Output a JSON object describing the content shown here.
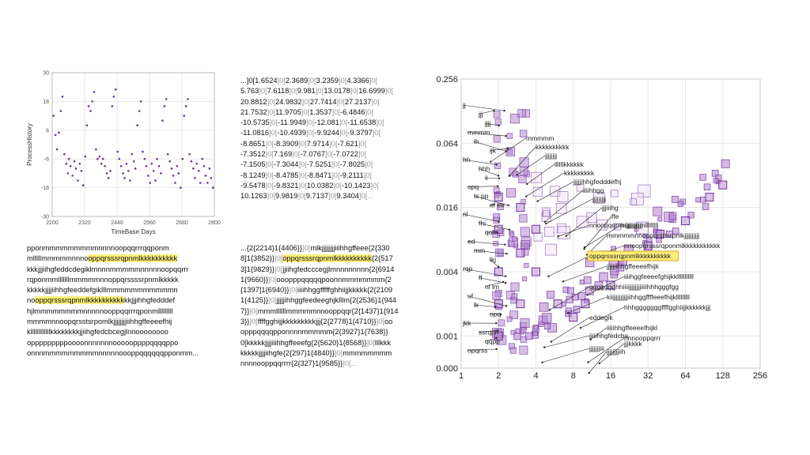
{
  "colors": {
    "accent": "#7030a0",
    "marker_fill": "#b58ad0",
    "highlight": "#fdf07a",
    "highlight_border": "#e0a020",
    "grid": "#e6e6e6"
  },
  "chart_data": [
    {
      "type": "scatter",
      "title": "",
      "xlabel": "TimeBase Days",
      "ylabel": "ProcessHistory",
      "xlim": [
        2200,
        2800
      ],
      "ylim": [
        -30,
        30
      ],
      "x_ticks": [
        "2200",
        "2320",
        "2440",
        "2560",
        "2680",
        "2800"
      ],
      "y_ticks": [
        "30",
        "18",
        "6",
        "-6",
        "-18",
        "-30"
      ],
      "grid": true,
      "series": [
        {
          "x": [
            2205,
            2212,
            2218,
            2225,
            2232,
            2238,
            2245,
            2252,
            2258,
            2262,
            2268,
            2275,
            2282,
            2288,
            2295,
            2302,
            2308,
            2315,
            2322,
            2328,
            2335,
            2342,
            2348,
            2355,
            2362,
            2368,
            2375,
            2382,
            2388,
            2395,
            2402,
            2408,
            2415,
            2422,
            2428,
            2435,
            2442,
            2448,
            2455,
            2462,
            2468,
            2475,
            2482,
            2488,
            2495,
            2502,
            2508,
            2515,
            2522,
            2528,
            2535,
            2542,
            2548,
            2555,
            2562,
            2568,
            2575,
            2582,
            2588,
            2595,
            2602,
            2608,
            2615,
            2622,
            2628,
            2635,
            2642,
            2648,
            2655,
            2662,
            2668,
            2675,
            2682,
            2688,
            2695,
            2702,
            2708,
            2715,
            2722,
            2728,
            2735,
            2742,
            2748,
            2755,
            2762,
            2768,
            2775,
            2782,
            2788,
            2795
          ],
          "y": [
            12.0,
            4.0,
            -2.0,
            5.0,
            14.0,
            20.0,
            -4.0,
            -8.0,
            -12.0,
            -6.0,
            -9.0,
            -13.0,
            -7.0,
            -10.0,
            -15.0,
            -8.0,
            -11.0,
            -17.0,
            -5.0,
            8.0,
            16.0,
            14.0,
            18.0,
            22.0,
            -2.0,
            -6.0,
            -5.0,
            -8.0,
            -6.0,
            -9.0,
            -12.0,
            -14.0,
            -11.0,
            16.0,
            20.0,
            23.0,
            -3.0,
            -6.0,
            -9.0,
            -12.0,
            -14.0,
            -8.0,
            -11.0,
            -15.0,
            -4.0,
            -7.0,
            -10.0,
            8.0,
            14.0,
            18.0,
            -3.0,
            -6.0,
            -9.0,
            -13.0,
            -16.0,
            -8.0,
            -11.0,
            -15.0,
            -6.0,
            -9.0,
            -12.0,
            10.0,
            16.0,
            19.0,
            -4.0,
            -7.0,
            -10.0,
            -13.0,
            -16.0,
            -9.0,
            -12.0,
            -18.0,
            -6.0,
            12.0,
            16.0,
            19.0,
            -4.0,
            -7.0,
            -10.0,
            -14.0,
            -8.0,
            -11.0,
            -16.0,
            -6.0,
            -9.0,
            -13.0,
            -16.0,
            -10.0,
            -14.0,
            -18.0
          ]
        }
      ]
    },
    {
      "type": "scatter",
      "title": "",
      "xlabel": "",
      "ylabel": "",
      "x_scale": "log2",
      "y_scale": "log",
      "x_ticks": [
        "1",
        "2",
        "4",
        "8",
        "16",
        "32",
        "64",
        "128",
        "256"
      ],
      "y_ticks": [
        "0.256",
        "0.064",
        "0.016",
        "0.004",
        "0.001",
        "0.000"
      ],
      "grid": true,
      "points": [
        {
          "x": 2,
          "y": 0.02
        },
        {
          "x": 2,
          "y": 0.01
        },
        {
          "x": 2,
          "y": 0.004
        },
        {
          "x": 2,
          "y": 0.002
        },
        {
          "x": 2,
          "y": 0.001
        },
        {
          "x": 3,
          "y": 0.016
        },
        {
          "x": 3,
          "y": 0.006
        },
        {
          "x": 3,
          "y": 0.002
        },
        {
          "x": 4,
          "y": 0.01
        },
        {
          "x": 4,
          "y": 0.004
        },
        {
          "x": 6,
          "y": 0.002
        },
        {
          "x": 8,
          "y": 0.0015
        },
        {
          "x": 10,
          "y": 0.002
        },
        {
          "x": 16,
          "y": 0.003
        },
        {
          "x": 20,
          "y": 0.005
        },
        {
          "x": 32,
          "y": 0.007
        },
        {
          "x": 40,
          "y": 0.009
        },
        {
          "x": 64,
          "y": 0.012
        },
        {
          "x": 100,
          "y": 0.02
        },
        {
          "x": 128,
          "y": 0.026
        }
      ],
      "annotations": [
        "jj",
        "jjj",
        "jjjj",
        "mmmm",
        "ih",
        "ijk",
        "hh",
        "hhh",
        "ii",
        "opq",
        "ts pp",
        "ef ee",
        "nl",
        "fhi",
        "qom",
        "ed",
        "mm",
        "lkj",
        "rqp",
        "ff",
        "nl lm",
        "uf",
        "lk",
        "opq",
        "jkk",
        "ssrqpn",
        "qqpp",
        "opqrss",
        "mmmmm",
        "kkkkkkkkkk",
        "jjjjjjjj",
        "llllllkkkkkk",
        "kkkkkkkkk",
        "jjjjjihhgfedddefhj",
        "iiiihhgg",
        "jjjjjjjjj",
        "jjjiiihg",
        "ffe",
        "hijjjjjjjjjjj",
        "nnoopqqrrrrqponmlllllllll",
        "mmmmmnnoopqrsttsrpnlkjjjjjjjjjj",
        "nnoopqrsssrqponmlkkkkkkkkkkk",
        "oppqrsssrqpnmlkkkkkkkkkk",
        "jjjjjjihhgffeeeefhijk",
        "iiiihggfeeeefghijkklllllllllll",
        "ggggggghhiiiijjjjjjjjiiiihhhgggfgg",
        "kiijjjjjjjjjjiihhggffffeeefhijklllllllll",
        "hhhgggggggffffgghiijjkkkkkkjjj",
        "eddegik",
        "iiiiihhgffeeeefhijkl",
        "nnnooppqrrr",
        "jjjjjjjiii",
        "jjjjjjjjiih",
        "jjjkkkk",
        "jjiiihhgfedcba"
      ],
      "highlighted_label": "oppqrsssrqpnmlkkkkkkkkkk"
    }
  ],
  "text_panels": {
    "sequence_left": {
      "lines": [
        [
          "pponmmmmmmmmmnnnnoopqqrrrqqponm"
        ],
        [
          "mlllllmmmmmnnno",
          "oppqrsssrqpnmlkkkkkkkkkk"
        ],
        [
          "kkkjjjiihgfeddcdegiklmnnnmmmmmnnnnnoopqqrrr"
        ],
        [
          "rqponmmlllllllmmmmmnnoppqrssssrpnmlkkkkk"
        ],
        [
          "kkkkkjjjjiihhgfeeddefgiklllmmmmmmmmmmmn"
        ],
        [
          "no",
          "oppqrsssrqpnmlkkkkkkkkkk",
          "kkjjjihhgfedddef"
        ],
        [
          "hjlmmmmmmmmnnnnnooppqqrrrqponmlllllllll"
        ],
        [
          "mmmmnnoopqrsstsrpomlkjjjjjjjjiihhgffeeeefhij"
        ],
        [
          "kllllllllllllkkkkkkkkjjiihgfedcbcegjlnnoooooooo"
        ],
        [
          "opppppppppoooonnnnnnnoooooppppqqqqppo"
        ],
        [
          "onnnmmmmmmmmmnnnnnoooppqqqqqqpponmm..."
        ]
      ]
    },
    "values_middle": {
      "lines": [
        [
          "...]0[",
          "1.6524",
          "]0[",
          "2.3689",
          "]0[",
          "3.2359",
          "]0[",
          "4.3366",
          "]0["
        ],
        [
          "5.763",
          "]0[",
          "7.6118",
          "]0[",
          "9.981",
          "]0[",
          "13.0178",
          "]0[",
          "16.6999",
          "]0["
        ],
        [
          "20.8812",
          "]0[",
          "24.9832",
          "]0[",
          "27.7414",
          "]0[",
          "27.2137",
          "]0["
        ],
        [
          "21.7532",
          "]0[",
          "11.9705",
          "]0[",
          "1.3537",
          "]0[",
          "-6.4846",
          "]0["
        ],
        [
          "-10.5735",
          "]0[",
          "-11.9949",
          "]0[",
          "-12.081",
          "]0[",
          "-11.6538",
          "]0["
        ],
        [
          "-11.0816",
          "]0[",
          "-10.4939",
          "]0[",
          "-9.9244",
          "]0[",
          "-9.3797",
          "]0["
        ],
        [
          "-8.8651",
          "]0[",
          "-8.3909",
          "]0[",
          "7.9714",
          "]0[",
          "-7.621",
          "]0["
        ],
        [
          "-7.3512",
          "]0[",
          "7.169",
          "]0[",
          "-7.0767",
          "]0[",
          "-7.0722",
          "]0["
        ],
        [
          "-7.1505",
          "]0[",
          "-7.3044",
          "]0[",
          "-7.5251",
          "]0[",
          "-7.8025",
          "]0["
        ],
        [
          "-8.1249",
          "]0[",
          "-8.4785",
          "]0[",
          "-8.8471",
          "]0[",
          "-9.2111",
          "]0["
        ],
        [
          "-9.5478",
          "]0[",
          "-9.8321",
          "]0[",
          "10.0382",
          "]0[",
          "-10.1423",
          "]0["
        ],
        [
          "10.1263",
          "]0[",
          "9.9819",
          "]0[",
          "9.7137",
          "]0[",
          "9.3404",
          "]0[..."
        ]
      ]
    },
    "tokens_middle": {
      "lines": [
        [
          "...{2{2214}1{4406}}",
          "]0[",
          "mlkjjjjjjjjiiihhgffeee{2{330"
        ],
        [
          "8]1{3852}}",
          "]0[",
          "oppqrsssrqpnmlkkkkkkkkkk",
          "{2{517"
        ],
        [
          "3]1{9829}}",
          "]0[",
          "jjiihgfedcccegjlmnnnnnnnn{2{6914"
        ],
        [
          "1{9660}}",
          "]0[",
          "ooopppqqqqqpoonnmmmmmmm{2"
        ],
        [
          "{1397]1{6940}}",
          "]0[",
          "iiiihhggfffffghhiijjkkkkk{2{2109"
        ],
        [
          "1{4125}}",
          "]0[",
          "jjjjjihhggfeedeeghjklllm{2{2536}1{944"
        ],
        [
          "7}}",
          "]0[",
          "mmmllllllmmmmmnnooppqqr{2{1437}1{914"
        ],
        [
          "3}}",
          "]0[",
          "ffffgghijjkkkkkkkkkjjj{2{2778}1{4710}}",
          "]0[",
          "oo"
        ],
        [
          "opppqqqqpponnnnmmmmm{2{3927}1{7638}}"
        ],
        [
          "0[kkkkkjjjjiiihhgffeeefg{2{5620}1{8568}}",
          "]0[",
          "lllkkk"
        ],
        [
          "kkkkkjjjjiihgfe{2{297}1{4840}}",
          "]0[",
          "mmmmmmmm"
        ],
        [
          "nnnnooppqqrrrr{2{327}1{9585}}",
          "]0[..."
        ]
      ]
    }
  }
}
